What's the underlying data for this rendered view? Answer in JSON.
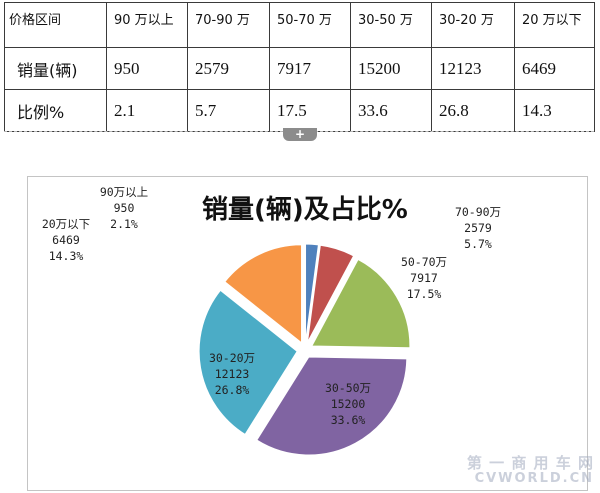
{
  "table": {
    "header_label": "价格区间",
    "headers": [
      "90 万以上",
      "70-90 万",
      "50-70 万",
      "30-50 万",
      "30-20 万",
      "20 万以下"
    ],
    "rows": [
      {
        "label": "销量(辆)",
        "values": [
          "950",
          "2579",
          "7917",
          "15200",
          "12123",
          "6469"
        ]
      },
      {
        "label": "比例%",
        "values": [
          "2.1",
          "5.7",
          "17.5",
          "33.6",
          "26.8",
          "14.3"
        ]
      }
    ]
  },
  "handle_icon": "plus-icon",
  "chart_data": {
    "type": "pie",
    "title": "销量(辆)及占比%",
    "exploded": true,
    "slices": [
      {
        "name": "90万以上",
        "value": 950,
        "percent": "2.1%",
        "color": "#4F81BD"
      },
      {
        "name": "70-90万",
        "value": 2579,
        "percent": "5.7%",
        "color": "#C0504D"
      },
      {
        "name": "50-70万",
        "value": 7917,
        "percent": "17.5%",
        "color": "#9BBB59"
      },
      {
        "name": "30-50万",
        "value": 15200,
        "percent": "33.6%",
        "color": "#8064A2"
      },
      {
        "name": "30-20万",
        "value": 12123,
        "percent": "26.8%",
        "color": "#4BACC6"
      },
      {
        "name": "20万以下",
        "value": 6469,
        "percent": "14.3%",
        "color": "#F79646"
      }
    ]
  },
  "watermark": {
    "line1": "第 一 商 用 车 网",
    "line2": "CVWORLD.CN"
  }
}
